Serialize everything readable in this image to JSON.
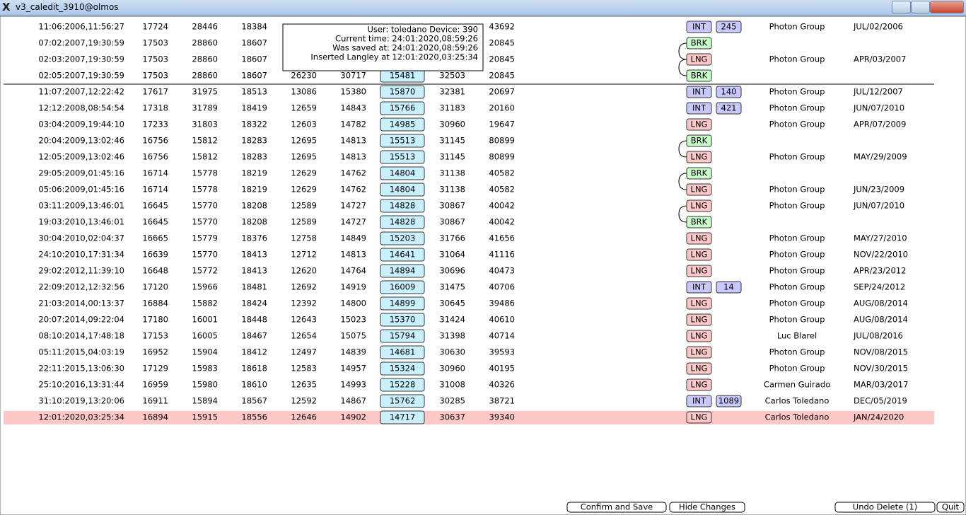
{
  "window": {
    "title": "v3_caledit_3910@olmos"
  },
  "tooltip": {
    "lines": [
      "User: toledano Device: 390",
      "Current time: 24:01:2020,08:59:26",
      "Was saved at: 24:01:2020,08:59:26",
      "Inserted Langley at 12:01:2020,03:25:34"
    ]
  },
  "rows": [
    {
      "time": "11:06:2006,11:56:27",
      "values": [
        17724,
        28446,
        18384,
        null,
        null,
        null,
        null,
        43692
      ],
      "tag": "INT",
      "count": 245,
      "group": "Photon Group",
      "date": "JUL/02/2006"
    },
    {
      "time": "07:02:2007,19:30:59",
      "values": [
        17503,
        28860,
        18607,
        null,
        null,
        null,
        null,
        20845
      ],
      "tag": "BRK"
    },
    {
      "time": "02:03:2007,19:30:59",
      "values": [
        17503,
        28860,
        18607,
        null,
        null,
        null,
        null,
        20845
      ],
      "tag": "LNG",
      "group": "Photon Group",
      "date": "APR/03/2007"
    },
    {
      "time": "02:05:2007,19:30:59",
      "values": [
        17503,
        28860,
        18607,
        26230,
        30717,
        15481,
        32503,
        20845
      ],
      "tag": "BRK"
    },
    {
      "time": "11:07:2007,12:22:42",
      "values": [
        17617,
        31975,
        18513,
        13086,
        15380,
        15870,
        32381,
        20697
      ],
      "tag": "INT",
      "count": 140,
      "group": "Photon Group",
      "date": "JUL/12/2007"
    },
    {
      "time": "12:12:2008,08:54:54",
      "values": [
        17318,
        31789,
        18419,
        12659,
        14843,
        15766,
        31183,
        20160
      ],
      "tag": "INT",
      "count": 421,
      "group": "Photon Group",
      "date": "JUN/07/2010"
    },
    {
      "time": "03:04:2009,19:44:10",
      "values": [
        17233,
        31803,
        18322,
        12603,
        14782,
        14985,
        30960,
        19647
      ],
      "tag": "LNG",
      "group": "Photon Group",
      "date": "APR/07/2009"
    },
    {
      "time": "20:04:2009,13:02:46",
      "values": [
        16756,
        15812,
        18283,
        12695,
        14813,
        15513,
        31145,
        80899
      ],
      "tag": "BRK"
    },
    {
      "time": "12:05:2009,13:02:46",
      "values": [
        16756,
        15812,
        18283,
        12695,
        14813,
        15513,
        31145,
        80899
      ],
      "tag": "LNG",
      "group": "Photon Group",
      "date": "MAY/29/2009"
    },
    {
      "time": "29:05:2009,01:45:16",
      "values": [
        16714,
        15778,
        18219,
        12629,
        14762,
        14804,
        31138,
        40582
      ],
      "tag": "BRK"
    },
    {
      "time": "05:06:2009,01:45:16",
      "values": [
        16714,
        15778,
        18219,
        12629,
        14762,
        14804,
        31138,
        40582
      ],
      "tag": "LNG",
      "group": "Photon Group",
      "date": "JUN/23/2009"
    },
    {
      "time": "03:11:2009,13:46:01",
      "values": [
        16645,
        15770,
        18208,
        12589,
        14727,
        14828,
        30867,
        40042
      ],
      "tag": "LNG",
      "group": "Photon Group",
      "date": "JUN/07/2010"
    },
    {
      "time": "19:03:2010,13:46:01",
      "values": [
        16645,
        15770,
        18208,
        12589,
        14727,
        14828,
        30867,
        40042
      ],
      "tag": "BRK"
    },
    {
      "time": "30:04:2010,02:04:37",
      "values": [
        16665,
        15779,
        18376,
        12758,
        14849,
        15203,
        31766,
        41656
      ],
      "tag": "LNG",
      "group": "Photon Group",
      "date": "MAY/27/2010"
    },
    {
      "time": "24:10:2010,17:31:34",
      "values": [
        16639,
        15770,
        18413,
        12712,
        14813,
        14641,
        31064,
        41116
      ],
      "tag": "LNG",
      "group": "Photon Group",
      "date": "NOV/22/2010"
    },
    {
      "time": "29:02:2012,11:39:10",
      "values": [
        16648,
        15772,
        18413,
        12620,
        14764,
        14894,
        30696,
        40473
      ],
      "tag": "LNG",
      "group": "Photon Group",
      "date": "APR/23/2012"
    },
    {
      "time": "22:09:2012,12:32:56",
      "values": [
        17120,
        15966,
        18481,
        12692,
        14919,
        16009,
        31475,
        40706
      ],
      "tag": "INT",
      "count": 14,
      "group": "Photon Group",
      "date": "SEP/24/2012"
    },
    {
      "time": "21:03:2014,00:13:37",
      "values": [
        16884,
        15882,
        18424,
        12392,
        14800,
        14899,
        30645,
        39486
      ],
      "tag": "LNG",
      "group": "Photon Group",
      "date": "AUG/08/2014"
    },
    {
      "time": "20:07:2014,09:22:04",
      "values": [
        17180,
        16001,
        18448,
        12643,
        15023,
        15370,
        31424,
        40610
      ],
      "tag": "LNG",
      "group": "Photon Group",
      "date": "AUG/08/2014"
    },
    {
      "time": "08:10:2014,17:48:18",
      "values": [
        17153,
        16005,
        18467,
        12654,
        15075,
        15794,
        31398,
        40714
      ],
      "tag": "LNG",
      "group": "Luc Blarel",
      "date": "JUL/08/2016"
    },
    {
      "time": "05:11:2015,04:03:19",
      "values": [
        16952,
        15904,
        18412,
        12497,
        14839,
        14681,
        30630,
        39593
      ],
      "tag": "LNG",
      "group": "Photon Group",
      "date": "NOV/08/2015"
    },
    {
      "time": "22:11:2015,13:06:30",
      "values": [
        17129,
        15983,
        18618,
        12583,
        14957,
        15324,
        30960,
        40195
      ],
      "tag": "LNG",
      "group": "Photon Group",
      "date": "NOV/30/2015"
    },
    {
      "time": "25:10:2016,13:31:44",
      "values": [
        16959,
        15980,
        18610,
        12635,
        14993,
        15228,
        31008,
        40326
      ],
      "tag": "LNG",
      "group": "Carmen Guirado",
      "date": "MAR/03/2017"
    },
    {
      "time": "31:10:2019,13:20:06",
      "values": [
        16911,
        15894,
        18567,
        12592,
        14867,
        15762,
        30285,
        38721
      ],
      "tag": "INT",
      "count": 1089,
      "group": "Carlos Toledano",
      "date": "DEC/05/2019"
    },
    {
      "time": "12:01:2020,03:25:34",
      "values": [
        16894,
        15915,
        18556,
        12646,
        14902,
        14717,
        30637,
        39340
      ],
      "tag": "LNG",
      "group": "Carlos Toledano",
      "date": "JAN/24/2020"
    }
  ],
  "buttons": [
    "Confirm and Save",
    "Hide Changes",
    "Undo Delete (1)",
    "Quit"
  ]
}
